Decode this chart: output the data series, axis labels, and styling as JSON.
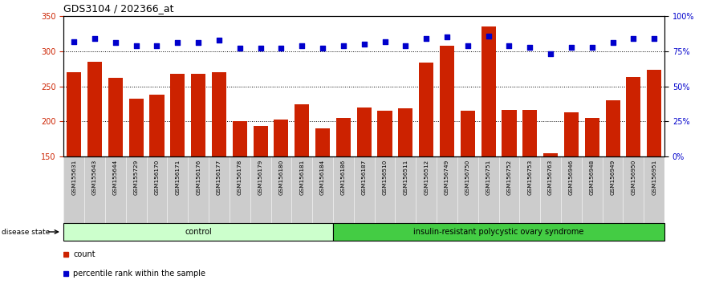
{
  "title": "GDS3104 / 202366_at",
  "samples": [
    "GSM155631",
    "GSM155643",
    "GSM155644",
    "GSM155729",
    "GSM156170",
    "GSM156171",
    "GSM156176",
    "GSM156177",
    "GSM156178",
    "GSM156179",
    "GSM156180",
    "GSM156181",
    "GSM156184",
    "GSM156186",
    "GSM156187",
    "GSM156510",
    "GSM156511",
    "GSM156512",
    "GSM156749",
    "GSM156750",
    "GSM156751",
    "GSM156752",
    "GSM156753",
    "GSM156763",
    "GSM156946",
    "GSM156948",
    "GSM156949",
    "GSM156950",
    "GSM156951"
  ],
  "bar_values": [
    270,
    285,
    262,
    232,
    238,
    268,
    268,
    270,
    200,
    193,
    203,
    224,
    190,
    205,
    220,
    215,
    219,
    284,
    308,
    215,
    335,
    216,
    216,
    155,
    213,
    205,
    230,
    263,
    274
  ],
  "dot_pct": [
    82,
    84,
    81,
    79,
    79,
    81,
    81,
    83,
    77,
    77,
    77,
    79,
    77,
    79,
    80,
    82,
    79,
    84,
    85,
    79,
    86,
    79,
    78,
    73,
    78,
    78,
    81,
    84,
    84
  ],
  "control_count": 13,
  "ylim_left": [
    150,
    350
  ],
  "ylim_right": [
    0,
    100
  ],
  "yticks_left": [
    150,
    200,
    250,
    300,
    350
  ],
  "yticks_right": [
    0,
    25,
    50,
    75,
    100
  ],
  "bar_color": "#cc2200",
  "dot_color": "#0000cc",
  "control_label": "control",
  "disease_label": "insulin-resistant polycystic ovary syndrome",
  "disease_state_label": "disease state",
  "legend_bar": "count",
  "legend_dot": "percentile rank within the sample",
  "control_bg": "#ccffcc",
  "disease_bg": "#44cc44",
  "xtick_bg": "#cccccc",
  "grid_dotted_at": [
    200,
    250,
    300
  ],
  "figsize": [
    8.81,
    3.54
  ],
  "dpi": 100
}
